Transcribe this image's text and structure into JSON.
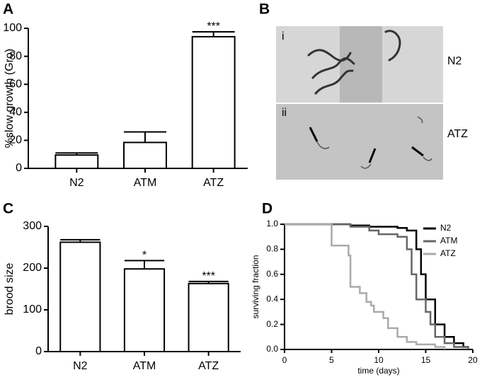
{
  "chart_data": [
    {
      "type": "bar",
      "panel": "A",
      "ylabel": "%slow growth (Gro)",
      "categories": [
        "N2",
        "ATM",
        "ATZ"
      ],
      "values": [
        9.5,
        18.5,
        94
      ],
      "errors": [
        1.5,
        7.5,
        3.5
      ],
      "annotations": [
        null,
        null,
        "***"
      ],
      "color": "#ffffff",
      "ylim": [
        0,
        100
      ],
      "yticks": [
        0,
        20,
        40,
        60,
        80,
        100
      ]
    },
    {
      "type": "image",
      "panel": "B",
      "labels": [
        "i",
        "ii"
      ],
      "side_labels": [
        "N2",
        "ATZ"
      ]
    },
    {
      "type": "bar",
      "panel": "C",
      "ylabel": "brood size",
      "categories": [
        "N2",
        "ATM",
        "ATZ"
      ],
      "values": [
        262,
        198,
        163
      ],
      "errors": [
        6,
        20,
        5
      ],
      "annotations": [
        null,
        "*",
        "***"
      ],
      "color": "#ffffff",
      "ylim": [
        0,
        300
      ],
      "yticks": [
        0,
        100,
        200,
        300
      ]
    },
    {
      "type": "step",
      "panel": "D",
      "xlabel": "time (days)",
      "ylabel": "surviving fraction",
      "xlim": [
        0,
        20
      ],
      "ylim": [
        0,
        1.0
      ],
      "xticks": [
        0,
        5,
        10,
        15,
        20
      ],
      "yticks": [
        {
          "value": 0,
          "label": "0.0"
        },
        {
          "value": 0.2,
          "label": "0.2"
        },
        {
          "value": 0.4,
          "label": "0.4"
        },
        {
          "value": 0.6,
          "label": "0.6"
        },
        {
          "value": 0.8,
          "label": "0.8"
        },
        {
          "value": 1,
          "label": "1.0"
        }
      ],
      "legend": "upper right",
      "series": [
        {
          "name": "N2",
          "color": "#000000",
          "x": [
            0,
            7,
            9,
            12,
            13,
            14,
            14.5,
            15,
            16,
            17,
            18,
            19,
            19.5
          ],
          "values": [
            1.0,
            0.99,
            0.98,
            0.97,
            0.95,
            0.8,
            0.6,
            0.4,
            0.2,
            0.1,
            0.05,
            0.02,
            0
          ]
        },
        {
          "name": "ATM",
          "color": "#666666",
          "x": [
            0,
            7,
            9,
            10,
            12,
            13,
            13.5,
            14,
            15,
            15.5,
            16,
            17,
            18,
            19.5
          ],
          "values": [
            1.0,
            0.98,
            0.95,
            0.92,
            0.9,
            0.8,
            0.6,
            0.4,
            0.3,
            0.2,
            0.1,
            0.05,
            0.02,
            0
          ]
        },
        {
          "name": "ATZ",
          "color": "#aaaaaa",
          "x": [
            0,
            5,
            6.8,
            7,
            8,
            8.7,
            9.2,
            9.5,
            10.5,
            11,
            12,
            13,
            14,
            16,
            17
          ],
          "values": [
            1.0,
            0.83,
            0.75,
            0.5,
            0.45,
            0.38,
            0.35,
            0.3,
            0.25,
            0.17,
            0.1,
            0.06,
            0.04,
            0.02,
            0
          ]
        }
      ]
    }
  ]
}
